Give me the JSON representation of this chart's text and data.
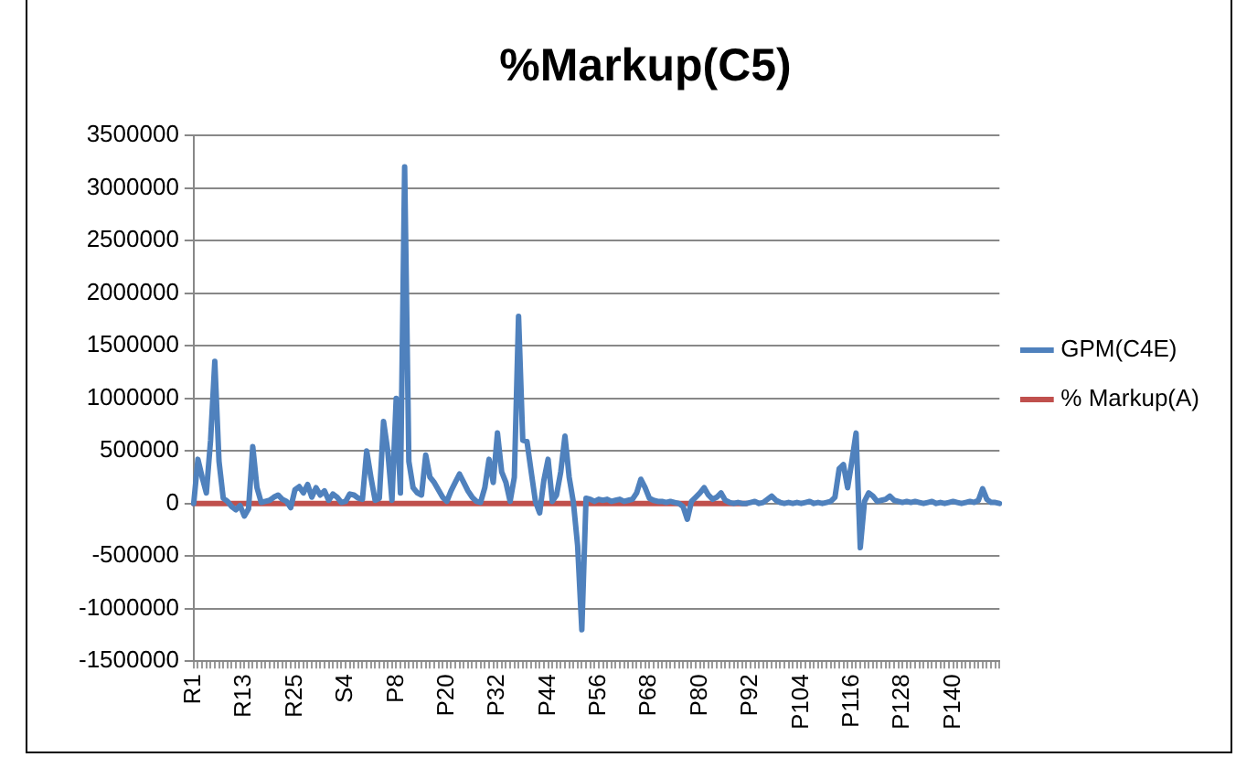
{
  "chart_data": {
    "type": "line",
    "title": "%Markup(C5)",
    "categories": [
      "R1",
      null,
      null,
      null,
      null,
      null,
      null,
      null,
      null,
      null,
      null,
      null,
      "R13",
      null,
      null,
      null,
      null,
      null,
      null,
      null,
      null,
      null,
      null,
      null,
      "R25",
      null,
      null,
      null,
      null,
      null,
      null,
      null,
      null,
      null,
      null,
      null,
      "S4",
      null,
      null,
      null,
      null,
      null,
      null,
      null,
      null,
      null,
      null,
      null,
      "P8",
      null,
      null,
      null,
      null,
      null,
      null,
      null,
      null,
      null,
      null,
      null,
      "P20",
      null,
      null,
      null,
      null,
      null,
      null,
      null,
      null,
      null,
      null,
      null,
      "P32",
      null,
      null,
      null,
      null,
      null,
      null,
      null,
      null,
      null,
      null,
      null,
      "P44",
      null,
      null,
      null,
      null,
      null,
      null,
      null,
      null,
      null,
      null,
      null,
      "P56",
      null,
      null,
      null,
      null,
      null,
      null,
      null,
      null,
      null,
      null,
      null,
      "P68",
      null,
      null,
      null,
      null,
      null,
      null,
      null,
      null,
      null,
      null,
      null,
      "P80",
      null,
      null,
      null,
      null,
      null,
      null,
      null,
      null,
      null,
      null,
      null,
      "P92",
      null,
      null,
      null,
      null,
      null,
      null,
      null,
      null,
      null,
      null,
      null,
      "P104",
      null,
      null,
      null,
      null,
      null,
      null,
      null,
      null,
      null,
      null,
      null,
      "P116",
      null,
      null,
      null,
      null,
      null,
      null,
      null,
      null,
      null,
      null,
      null,
      "P128",
      null,
      null,
      null,
      null,
      null,
      null,
      null,
      null,
      null,
      null,
      null,
      "P140",
      null,
      null,
      null,
      null,
      null,
      null,
      null,
      null,
      null,
      null,
      null
    ],
    "series": [
      {
        "name": "GPM(C4E)",
        "color": "#4f81bd",
        "values": [
          0,
          420000,
          250000,
          100000,
          600000,
          1350000,
          400000,
          50000,
          20000,
          -30000,
          -60000,
          -20000,
          -120000,
          -50000,
          540000,
          150000,
          10000,
          20000,
          30000,
          60000,
          80000,
          40000,
          20000,
          -40000,
          130000,
          160000,
          100000,
          180000,
          60000,
          150000,
          80000,
          120000,
          30000,
          90000,
          60000,
          10000,
          20000,
          90000,
          80000,
          50000,
          40000,
          500000,
          250000,
          30000,
          50000,
          780000,
          500000,
          30000,
          1000000,
          100000,
          3200000,
          400000,
          150000,
          100000,
          80000,
          460000,
          250000,
          200000,
          130000,
          60000,
          20000,
          120000,
          200000,
          280000,
          200000,
          120000,
          60000,
          20000,
          10000,
          150000,
          420000,
          200000,
          670000,
          300000,
          200000,
          20000,
          250000,
          1780000,
          600000,
          590000,
          300000,
          20000,
          -90000,
          220000,
          420000,
          20000,
          80000,
          300000,
          640000,
          250000,
          10000,
          -400000,
          -1200000,
          50000,
          40000,
          20000,
          40000,
          30000,
          40000,
          20000,
          30000,
          40000,
          20000,
          30000,
          40000,
          100000,
          230000,
          150000,
          50000,
          30000,
          20000,
          20000,
          10000,
          20000,
          10000,
          0,
          -30000,
          -150000,
          20000,
          60000,
          100000,
          150000,
          80000,
          40000,
          60000,
          100000,
          30000,
          10000,
          0,
          10000,
          0,
          0,
          10000,
          20000,
          0,
          10000,
          40000,
          70000,
          30000,
          10000,
          0,
          10000,
          0,
          10000,
          0,
          10000,
          20000,
          0,
          10000,
          0,
          10000,
          20000,
          60000,
          330000,
          370000,
          150000,
          400000,
          670000,
          -420000,
          20000,
          100000,
          70000,
          20000,
          30000,
          40000,
          70000,
          30000,
          20000,
          10000,
          20000,
          10000,
          20000,
          10000,
          0,
          10000,
          20000,
          0,
          10000,
          0,
          10000,
          20000,
          10000,
          0,
          10000,
          20000,
          10000,
          30000,
          140000,
          40000,
          10000,
          10000,
          0
        ]
      },
      {
        "name": "% Markup(A)",
        "color": "#c0504d",
        "values": [
          0,
          0,
          0,
          0,
          0,
          0,
          0,
          0,
          0,
          0,
          0,
          0,
          0,
          0,
          0,
          0,
          0,
          0,
          0,
          0,
          0,
          0,
          0,
          0,
          0,
          0,
          0,
          0,
          0,
          0,
          0,
          0,
          0,
          0,
          0,
          0,
          0,
          0,
          0,
          0,
          0,
          0,
          0,
          0,
          0,
          0,
          0,
          0,
          0,
          0,
          0,
          0,
          0,
          0,
          0,
          0,
          0,
          0,
          0,
          0,
          0,
          0,
          0,
          0,
          0,
          0,
          0,
          0,
          0,
          0,
          0,
          0,
          0,
          0,
          0,
          0,
          0,
          0,
          0,
          0,
          0,
          0,
          0,
          0,
          0,
          0,
          0,
          0,
          0,
          0,
          0,
          0,
          0,
          0,
          0,
          0,
          0,
          0,
          0,
          0,
          0,
          0,
          0,
          0,
          0,
          0,
          0,
          0,
          0,
          0,
          0,
          0,
          0,
          0,
          0,
          0,
          0,
          0,
          0,
          0,
          0,
          0,
          0,
          0,
          0,
          0,
          0,
          0,
          0,
          0,
          0,
          0,
          null,
          null,
          null,
          null,
          null,
          null,
          null,
          null,
          null,
          null,
          null,
          null,
          null,
          null,
          null,
          null,
          null,
          null,
          null,
          null,
          null,
          null,
          null,
          null,
          null,
          null,
          null,
          null,
          null,
          null,
          null,
          null,
          null,
          null,
          null,
          null,
          null,
          null,
          null,
          null,
          null,
          null,
          null,
          null,
          null,
          null,
          null,
          null,
          null,
          null,
          null,
          null,
          null,
          null,
          null,
          null,
          null,
          null,
          null,
          null
        ]
      }
    ],
    "ylim": [
      -1500000,
      3500000
    ],
    "yticks": [
      -1500000,
      -1000000,
      -500000,
      0,
      500000,
      1000000,
      1500000,
      2000000,
      2500000,
      3000000,
      3500000
    ],
    "grid": "y",
    "legend": "right",
    "marker": "none",
    "line_style": "solid"
  }
}
